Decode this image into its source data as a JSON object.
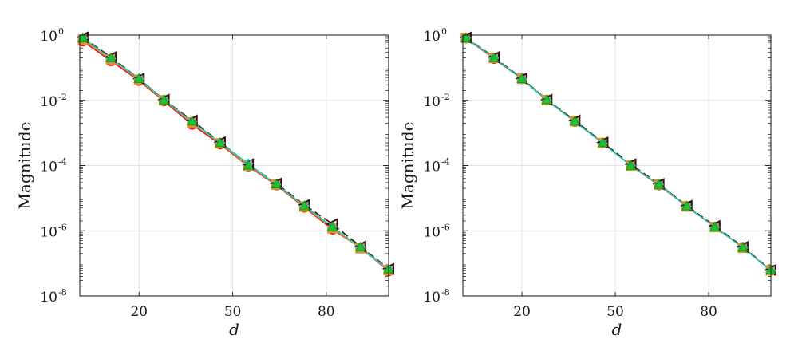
{
  "chart_data": [
    {
      "type": "line",
      "xlabel": "d",
      "ylabel": "Magnitude",
      "yscale": "log",
      "xlim": [
        1,
        100
      ],
      "ylim": [
        1e-08,
        1
      ],
      "x_ticks": [
        20,
        50,
        80
      ],
      "y_ticks": [
        {
          "value": 1,
          "base": "10",
          "exp": "0"
        },
        {
          "value": 0.01,
          "base": "10",
          "exp": "-2"
        },
        {
          "value": 0.0001,
          "base": "10",
          "exp": "-4"
        },
        {
          "value": 1e-06,
          "base": "10",
          "exp": "-6"
        },
        {
          "value": 1e-08,
          "base": "10",
          "exp": "-8"
        }
      ],
      "grid": true,
      "series": [
        {
          "color": "#e8141b",
          "marker": "circle",
          "dash": "solid",
          "x": [
            2,
            11,
            20,
            28,
            37,
            46,
            55,
            64,
            73,
            82,
            91,
            100
          ],
          "y": [
            0.65,
            0.16,
            0.04,
            0.0095,
            0.0018,
            0.00045,
            9.5e-05,
            2.5e-05,
            5.2e-06,
            1.1e-06,
            3e-07,
            5.8e-08
          ]
        },
        {
          "color": "#f08a1c",
          "marker": "square",
          "dash": "solid",
          "x": [
            2,
            11,
            20,
            28,
            37,
            46,
            55,
            64,
            73,
            82,
            91,
            100
          ],
          "y": [
            0.72,
            0.18,
            0.043,
            0.01,
            0.0021,
            0.00048,
            0.0001,
            2.6e-05,
            5.5e-06,
            1.2e-06,
            2.9e-07,
            6.2e-08
          ]
        },
        {
          "color": "#3a0a0a",
          "marker": "triangle-left",
          "dash": "dashed",
          "x": [
            2,
            11,
            20,
            28,
            37,
            46,
            55,
            64,
            73,
            82,
            91,
            100
          ],
          "y": [
            0.85,
            0.21,
            0.046,
            0.0105,
            0.0024,
            0.00052,
            0.00011,
            2.8e-05,
            6.2e-06,
            1.6e-06,
            3.3e-07,
            6.8e-08
          ]
        },
        {
          "color": "#29c8f0",
          "marker": "star",
          "dash": "solid",
          "x": [
            2,
            11,
            20,
            28,
            37,
            46,
            55,
            64,
            73,
            82,
            91,
            100
          ],
          "y": [
            0.8,
            0.19,
            0.045,
            0.0102,
            0.0022,
            0.00049,
            0.000115,
            2.6e-05,
            5.8e-06,
            1.3e-06,
            3e-07,
            6.4e-08
          ]
        },
        {
          "color": "#22c22c",
          "marker": "triangle-up",
          "dash": "dotted",
          "x": [
            2,
            11,
            20,
            28,
            37,
            46,
            55,
            64,
            73,
            82,
            91,
            100
          ],
          "y": [
            0.82,
            0.2,
            0.046,
            0.0102,
            0.0023,
            0.0005,
            0.0001,
            2.7e-05,
            5.8e-06,
            1.3e-06,
            3.2e-07,
            6.6e-08
          ]
        }
      ]
    },
    {
      "type": "line",
      "xlabel": "d",
      "ylabel": "Magnitude",
      "yscale": "log",
      "xlim": [
        1,
        100
      ],
      "ylim": [
        1e-08,
        1
      ],
      "x_ticks": [
        20,
        50,
        80
      ],
      "y_ticks": [
        {
          "value": 1,
          "base": "10",
          "exp": "0"
        },
        {
          "value": 0.01,
          "base": "10",
          "exp": "-2"
        },
        {
          "value": 0.0001,
          "base": "10",
          "exp": "-4"
        },
        {
          "value": 1e-06,
          "base": "10",
          "exp": "-6"
        },
        {
          "value": 1e-08,
          "base": "10",
          "exp": "-8"
        }
      ],
      "grid": true,
      "series": [
        {
          "color": "#e8141b",
          "marker": "circle",
          "dash": "solid",
          "x": [
            2,
            11,
            20,
            28,
            37,
            46,
            55,
            64,
            73,
            82,
            91,
            100
          ],
          "y": [
            0.8,
            0.19,
            0.045,
            0.01,
            0.0022,
            0.00048,
            0.0001,
            2.5e-05,
            5.5e-06,
            1.3e-06,
            3.1e-07,
            6e-08
          ]
        },
        {
          "color": "#f08a1c",
          "marker": "square",
          "dash": "solid",
          "x": [
            2,
            11,
            20,
            28,
            37,
            46,
            55,
            64,
            73,
            82,
            91,
            100
          ],
          "y": [
            0.82,
            0.2,
            0.046,
            0.0102,
            0.0023,
            0.00049,
            0.0001,
            2.6e-05,
            5.6e-06,
            1.3e-06,
            3e-07,
            6.1e-08
          ]
        },
        {
          "color": "#3a0a0a",
          "marker": "triangle-left",
          "dash": "dashed",
          "x": [
            2,
            11,
            20,
            28,
            37,
            46,
            55,
            64,
            73,
            82,
            91,
            100
          ],
          "y": [
            0.84,
            0.21,
            0.047,
            0.0104,
            0.0024,
            0.00051,
            0.00011,
            2.7e-05,
            5.8e-06,
            1.4e-06,
            3.2e-07,
            6.3e-08
          ]
        },
        {
          "color": "#29c8f0",
          "marker": "star",
          "dash": "solid",
          "x": [
            2,
            11,
            20,
            28,
            37,
            46,
            55,
            64,
            73,
            82,
            91,
            100
          ],
          "y": [
            0.81,
            0.2,
            0.044,
            0.0101,
            0.0022,
            0.00047,
            0.0001,
            2.6e-05,
            5.5e-06,
            1.3e-06,
            3e-07,
            6e-08
          ]
        },
        {
          "color": "#22c22c",
          "marker": "triangle-up",
          "dash": "dotted",
          "x": [
            2,
            11,
            20,
            28,
            37,
            46,
            55,
            64,
            73,
            82,
            91,
            100
          ],
          "y": [
            0.82,
            0.2,
            0.046,
            0.0103,
            0.0023,
            0.0005,
            0.0001,
            2.6e-05,
            5.7e-06,
            1.3e-06,
            3.1e-07,
            6.2e-08
          ]
        }
      ]
    }
  ]
}
